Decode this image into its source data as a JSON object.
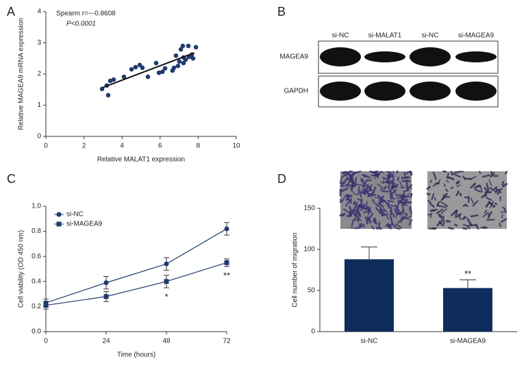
{
  "chart_data": [
    {
      "type": "scatter",
      "panel": "A",
      "xlabel": "Relative MALAT1 expression",
      "ylabel": "Relative MAGEA9 mRNA expression",
      "annotations": [
        "Spearm r=−-0.8608",
        "P<0.0001"
      ],
      "x": [
        2.95,
        3.2,
        3.38,
        3.56,
        3.27,
        4.1,
        4.5,
        4.71,
        4.93,
        5.07,
        5.36,
        5.79,
        5.94,
        6.12,
        6.26,
        6.65,
        6.73,
        6.83,
        6.94,
        7.01,
        7.09,
        7.19,
        7.23,
        7.23,
        7.34,
        7.48,
        7.52,
        7.66,
        7.73,
        7.88
      ],
      "values": [
        1.52,
        1.63,
        1.78,
        1.82,
        1.32,
        1.91,
        2.15,
        2.22,
        2.29,
        2.2,
        1.91,
        2.35,
        2.04,
        2.07,
        2.18,
        2.11,
        2.2,
        2.59,
        2.26,
        2.4,
        2.79,
        2.9,
        2.35,
        2.53,
        2.46,
        2.9,
        2.55,
        2.62,
        2.5,
        2.86
      ],
      "color": "#1f3a6e",
      "fit_line": {
        "x": [
          3,
          7.8
        ],
        "y": [
          1.57,
          2.68
        ]
      },
      "xlim": [
        0,
        10
      ],
      "xticks": [
        0,
        2,
        4,
        6,
        8,
        10
      ],
      "ylim": [
        0,
        4
      ],
      "yticks": [
        0,
        1,
        2,
        3,
        4
      ]
    },
    {
      "type": "line",
      "panel": "C",
      "xlabel": "Time (hours)",
      "ylabel": "Cell viability (OD 450 nm)",
      "x": [
        0,
        24,
        48,
        72
      ],
      "legend": "top-left",
      "series": [
        {
          "name": "si-NC",
          "color": "#1f3a6e",
          "marker": "circle",
          "values": [
            0.23,
            0.39,
            0.54,
            0.82
          ],
          "errors": [
            0.03,
            0.05,
            0.05,
            0.05
          ]
        },
        {
          "name": "si-MAGEA9",
          "color": "#1f3a6e",
          "marker": "square",
          "values": [
            0.21,
            0.28,
            0.4,
            0.55
          ],
          "errors": [
            0.03,
            0.04,
            0.05,
            0.03
          ],
          "significance": [
            null,
            null,
            "*",
            "**"
          ]
        }
      ],
      "xlim": [
        0,
        72
      ],
      "xticks": [
        0,
        24,
        48,
        72
      ],
      "ylim": [
        0,
        1
      ],
      "yticks": [
        {
          "value": 0,
          "label": "0.0"
        },
        0.2,
        0.4,
        0.6,
        0.8,
        {
          "value": 1,
          "label": "1.0"
        }
      ]
    },
    {
      "type": "bar",
      "panel": "D",
      "ylabel": "Cell number of migration",
      "categories": [
        "si-NC",
        "si-MAGEA9"
      ],
      "values": [
        88,
        53
      ],
      "errors": [
        15,
        10
      ],
      "significance": [
        null,
        "**"
      ],
      "color": "#0f2d5c",
      "ylim": [
        0,
        150
      ],
      "yticks": [
        0,
        50,
        100,
        150
      ]
    }
  ],
  "blot": {
    "panel": "B",
    "lanes": [
      "si-NC",
      "si-MALAT1",
      "si-NC",
      "si-MAGEA9"
    ],
    "rows": [
      "MAGEA9",
      "GAPDH"
    ]
  }
}
